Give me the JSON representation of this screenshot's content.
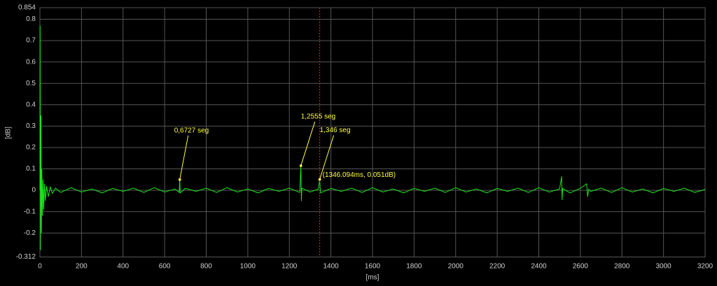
{
  "chart_data": {
    "type": "line",
    "xlabel": "[ms]",
    "ylabel": "[dB]",
    "color": "#19e619",
    "x": [
      0,
      1,
      3,
      5,
      7,
      9,
      12,
      15,
      18,
      22,
      26,
      32,
      40,
      50,
      60,
      75,
      100,
      150,
      200,
      250,
      300,
      350,
      400,
      450,
      500,
      550,
      600,
      650,
      670,
      672.7,
      675,
      700,
      750,
      800,
      850,
      900,
      950,
      1000,
      1050,
      1100,
      1150,
      1200,
      1250,
      1255.5,
      1258,
      1260,
      1300,
      1340,
      1346,
      1350,
      1400,
      1450,
      1500,
      1550,
      1600,
      1650,
      1700,
      1750,
      1800,
      1850,
      1900,
      1950,
      2000,
      2050,
      2100,
      2150,
      2200,
      2250,
      2300,
      2350,
      2400,
      2450,
      2500,
      2510,
      2512,
      2515,
      2550,
      2600,
      2630,
      2635,
      2640,
      2650,
      2700,
      2750,
      2800,
      2850,
      2900,
      2950,
      3000,
      3050,
      3100,
      3150,
      3200
    ],
    "values": [
      0,
      0.77,
      -0.28,
      0.35,
      -0.2,
      0.1,
      -0.12,
      0.05,
      -0.09,
      0.03,
      -0.05,
      0.02,
      -0.03,
      0.015,
      -0.015,
      0.01,
      -0.01,
      0.012,
      -0.008,
      0.006,
      -0.012,
      0.009,
      -0.005,
      0.01,
      -0.01,
      0.012,
      -0.008,
      0.006,
      -0.01,
      0.05,
      -0.012,
      0.009,
      -0.005,
      0.01,
      -0.01,
      0.012,
      -0.008,
      0.006,
      -0.012,
      0.009,
      -0.005,
      0.01,
      -0.01,
      0.115,
      -0.05,
      0.01,
      -0.008,
      0.006,
      0.051,
      -0.012,
      0.009,
      -0.005,
      0.01,
      -0.01,
      0.012,
      -0.008,
      0.006,
      -0.012,
      0.009,
      -0.005,
      0.01,
      -0.01,
      0.012,
      -0.008,
      0.006,
      -0.012,
      0.009,
      -0.005,
      0.01,
      -0.01,
      0.012,
      -0.008,
      0.006,
      0.065,
      -0.045,
      0.008,
      -0.012,
      0.009,
      0.03,
      -0.03,
      0.005,
      -0.005,
      0.01,
      -0.01,
      0.012,
      -0.008,
      0.006,
      -0.012,
      0.009,
      -0.005,
      0.01,
      -0.01,
      0.004
    ],
    "xlim": [
      0,
      3200
    ],
    "xticks": [
      0,
      200,
      400,
      600,
      800,
      1000,
      1200,
      1400,
      1600,
      1800,
      2000,
      2200,
      2400,
      2600,
      2800,
      3000,
      3200
    ],
    "ylim": [
      -0.312,
      0.854
    ],
    "yticks": [
      0.854,
      0.8,
      0.7,
      0.6,
      0.5,
      0.4,
      0.3,
      0.2,
      0.1,
      0,
      -0.1,
      -0.2,
      -0.312
    ],
    "grid": true,
    "annotations": [
      {
        "text": "0,6727 seg",
        "x": 672.7,
        "y": 0.05
      },
      {
        "text": "1,2555 seg",
        "x": 1255.5,
        "y": 0.115
      },
      {
        "text": "1,346 seg",
        "x": 1346,
        "y": 0.051
      }
    ],
    "cursor": {
      "x": 1346.094,
      "y": 0.051,
      "label": "(1346.094ms, 0.051dB)",
      "color": "#d03030"
    }
  }
}
